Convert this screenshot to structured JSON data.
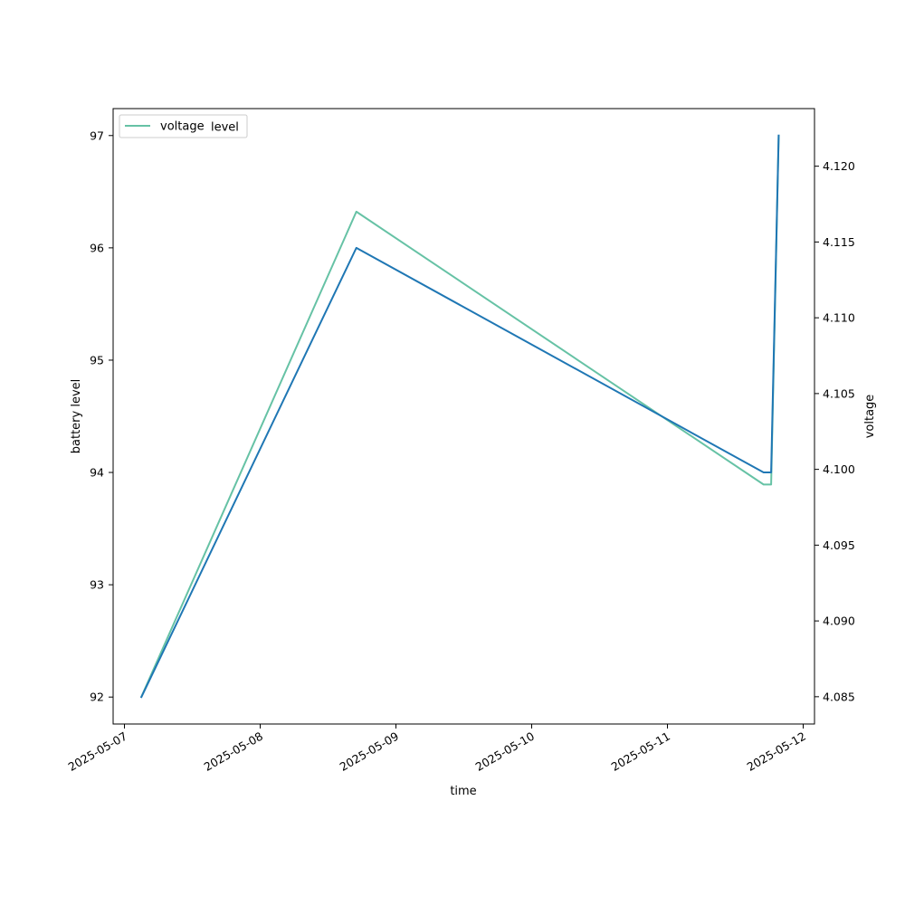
{
  "chart_data": {
    "type": "line",
    "xlabel": "time",
    "ylabel": "battery level",
    "y2label": "voltage",
    "x_ticks": [
      "2025-05-07",
      "2025-05-08",
      "2025-05-09",
      "2025-05-10",
      "2025-05-11",
      "2025-05-12"
    ],
    "xlim": [
      "2025-05-06T22:00",
      "2025-05-12T02:00"
    ],
    "ylim": [
      91.76,
      97.24
    ],
    "y_ticks": [
      "92",
      "93",
      "94",
      "95",
      "96",
      "97"
    ],
    "y2lim": [
      4.0832,
      4.1238
    ],
    "y2_ticks": [
      "4.085",
      "4.090",
      "4.095",
      "4.100",
      "4.105",
      "4.110",
      "4.115",
      "4.120"
    ],
    "grid": false,
    "legend_position": "upper-left",
    "series": [
      {
        "name": "level",
        "axis": "left",
        "color": "#1f77b4",
        "x": [
          "2025-05-07T03:00",
          "2025-05-08T17:00",
          "2025-05-11T17:00",
          "2025-05-11T18:20",
          "2025-05-11T19:40"
        ],
        "values": [
          92,
          96,
          94,
          94,
          97
        ]
      },
      {
        "name": "voltage",
        "axis": "right",
        "color": "#66c2a5",
        "x": [
          "2025-05-07T03:00",
          "2025-05-08T17:00",
          "2025-05-11T17:00",
          "2025-05-11T18:20",
          "2025-05-11T19:40"
        ],
        "values": [
          4.085,
          4.117,
          4.099,
          4.099,
          4.122
        ]
      }
    ]
  }
}
